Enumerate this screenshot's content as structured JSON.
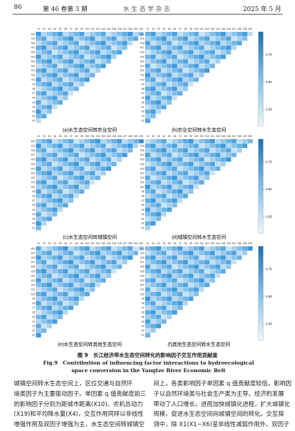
{
  "header": {
    "page": "86",
    "volume": "第 46 卷第 3 期",
    "journal": "水 生 态 学 杂 志",
    "date": "2025 年 5 月"
  },
  "figure": {
    "factors": [
      "X1",
      "X2",
      "X3",
      "X4",
      "X5",
      "X6",
      "X7",
      "X8",
      "X9",
      "X10",
      "X11",
      "X12",
      "X13",
      "X14",
      "X15",
      "X16",
      "X17",
      "X18",
      "X19",
      "X20"
    ],
    "colorbar_ticks": [
      "0.75",
      "0.50",
      "0.25"
    ],
    "panels": [
      "(a)水生态空间转农业空间",
      "(b)农业空间转水生态空间",
      "(c)水生态空间转城镇空间",
      "(d)城镇空间转水生态空间",
      "(e)水生态空间转其他生态空间",
      "(f)其他生态空间转水生态空间"
    ],
    "caption_cn": "图 9　长江经济带水生态空间转化的影响因子交互作用贡献度",
    "caption_en": "Fig.9　Contribution of influencing factor interactions to hydroecological space conversion in the Yangtze River Economic Belt"
  },
  "body": {
    "left": [
      "城镇空间转水生态空间上，区位交通与自然环",
      "境类因子为主要驱动因子。单因素 q 值贡献度前三",
      "的影响因子分别为距城市距离(X10)、农机总动力",
      "(X19)和平均降水量(X4)，交互作用同样以非线性",
      "增强作用及双因子增强为主，水生态空间转城镇空"
    ],
    "right": [
      "间上，各类影响因子单因素 q 值贡献度较低，影响因",
      "子以自然环境类与社会生产类为主导。经济的发展",
      "带动了人口增长，进而加快城镇化进程，扩大城镇化",
      "规模，促进水生态空间向城镇空间的转化。交互探",
      "测中，除 X1(X1~X6)呈非线性减弱作用外，双因子"
    ]
  }
}
